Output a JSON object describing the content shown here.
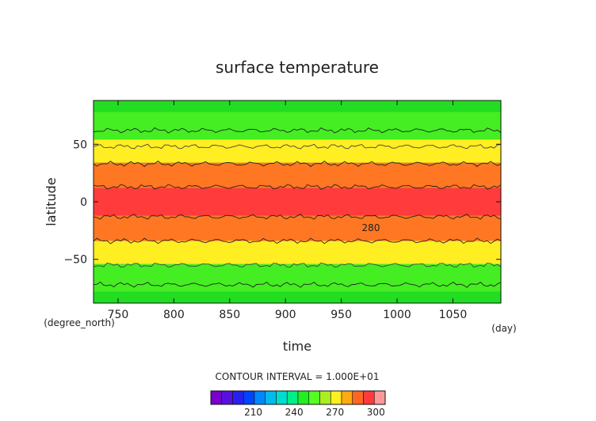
{
  "chart_data": {
    "type": "heatmap",
    "title": "surface temperature",
    "xlabel": "time",
    "ylabel": "latitude",
    "x_unit": "(day)",
    "y_unit": "(degree_north)",
    "xlim": [
      728,
      1093
    ],
    "ylim": [
      -88,
      88
    ],
    "x_ticks": [
      750,
      800,
      850,
      900,
      950,
      1000,
      1050
    ],
    "y_ticks": [
      50,
      0,
      -50
    ],
    "y_tick_labels": [
      "50",
      "0",
      "−50"
    ],
    "contour_label": "280",
    "contour_interval_text": "CONTOUR INTERVAL = 1.000E+01",
    "bands": [
      {
        "range": [
          220,
          230
        ],
        "lat_north": [
          78,
          88
        ],
        "lat_south": [
          -88,
          -78
        ],
        "color": "#22dd22"
      },
      {
        "range": [
          230,
          240
        ],
        "lat_north": [
          78,
          88
        ],
        "lat_south": [
          -88,
          -78
        ],
        "color": "#22dd22"
      },
      {
        "range": [
          240,
          250
        ],
        "lat_north": [
          54,
          78
        ],
        "lat_south": [
          -78,
          -54
        ],
        "color": "#44ee22"
      },
      {
        "range": [
          250,
          260
        ],
        "lat_north": [
          54,
          78
        ],
        "lat_south": [
          -78,
          -54
        ],
        "color": "#44ee22"
      },
      {
        "range": [
          260,
          270
        ],
        "lat_north": [
          34,
          54
        ],
        "lat_south": [
          -54,
          -34
        ],
        "color": "#ffee22"
      },
      {
        "range": [
          270,
          280
        ],
        "lat_north": [
          12,
          34
        ],
        "lat_south": [
          -34,
          -12
        ],
        "color": "#ff7722"
      },
      {
        "range": [
          280,
          290
        ],
        "lat_north": [
          -12,
          12
        ],
        "color": "#ff3b3b"
      }
    ],
    "contours": [
      {
        "value": 250,
        "lat": 62,
        "color": "#222222"
      },
      {
        "value": 260,
        "lat": 48,
        "color": "#444444"
      },
      {
        "value": 270,
        "lat": 33,
        "color": "#222222"
      },
      {
        "value": 280,
        "lat": 13,
        "color": "#222222"
      },
      {
        "value": 280,
        "lat": -13,
        "color": "#222222"
      },
      {
        "value": 270,
        "lat": -34,
        "color": "#222222"
      },
      {
        "value": 260,
        "lat": -55,
        "color": "#444444"
      },
      {
        "value": 250,
        "lat": -72,
        "color": "#222222"
      }
    ],
    "colorbar": {
      "ticks": [
        210,
        240,
        270,
        300
      ],
      "levels": [
        180,
        300
      ],
      "colors": [
        "#7a00cc",
        "#5a10dd",
        "#2a20ee",
        "#0044ff",
        "#0088ff",
        "#00bbee",
        "#00ddcc",
        "#00ee88",
        "#22ee22",
        "#55ff22",
        "#aaee22",
        "#ffee22",
        "#ffaa11",
        "#ff6622",
        "#ff3b3b",
        "#ff9999"
      ]
    }
  }
}
